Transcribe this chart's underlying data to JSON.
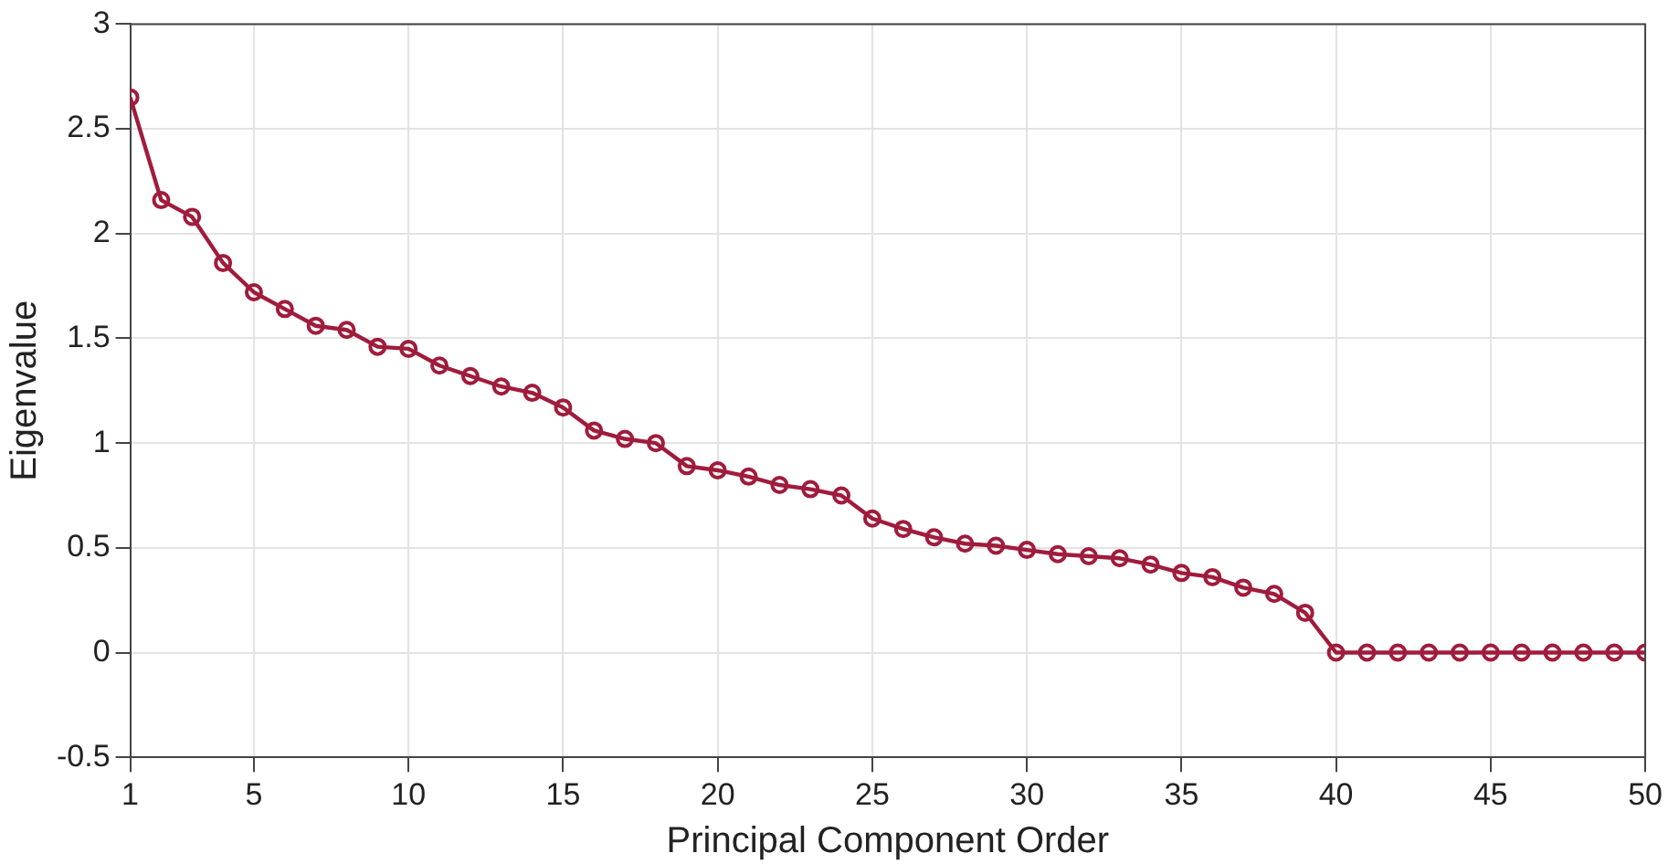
{
  "chart_data": {
    "type": "line",
    "xlabel": "Principal Component Order",
    "ylabel": "Eigenvalue",
    "x": [
      1,
      2,
      3,
      4,
      5,
      6,
      7,
      8,
      9,
      10,
      11,
      12,
      13,
      14,
      15,
      16,
      17,
      18,
      19,
      20,
      21,
      22,
      23,
      24,
      25,
      26,
      27,
      28,
      29,
      30,
      31,
      32,
      33,
      34,
      35,
      36,
      37,
      38,
      39,
      40,
      41,
      42,
      43,
      44,
      45,
      46,
      47,
      48,
      49,
      50
    ],
    "series": [
      {
        "color": "#a01c3c",
        "values": [
          2.65,
          2.16,
          2.08,
          1.86,
          1.72,
          1.64,
          1.56,
          1.54,
          1.46,
          1.45,
          1.37,
          1.32,
          1.27,
          1.24,
          1.17,
          1.06,
          1.02,
          1.0,
          0.89,
          0.87,
          0.84,
          0.8,
          0.78,
          0.75,
          0.64,
          0.59,
          0.55,
          0.52,
          0.51,
          0.49,
          0.47,
          0.46,
          0.45,
          0.42,
          0.38,
          0.36,
          0.31,
          0.28,
          0.19,
          0,
          0,
          0,
          0,
          0,
          0,
          0,
          0,
          0,
          0,
          0
        ]
      }
    ],
    "xlim": [
      1,
      50
    ],
    "xticks": [
      1,
      5,
      10,
      15,
      20,
      25,
      30,
      35,
      40,
      45,
      50
    ],
    "ylim": [
      -0.5,
      3
    ],
    "yticks": [
      -0.5,
      0,
      0.5,
      1,
      1.5,
      2,
      2.5,
      3
    ],
    "grid": true,
    "legend": false,
    "marker": "circle",
    "line_style": "solid"
  }
}
